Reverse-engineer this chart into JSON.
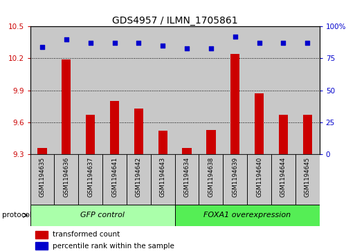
{
  "title": "GDS4957 / ILMN_1705861",
  "samples": [
    "GSM1194635",
    "GSM1194636",
    "GSM1194637",
    "GSM1194641",
    "GSM1194642",
    "GSM1194643",
    "GSM1194634",
    "GSM1194638",
    "GSM1194639",
    "GSM1194640",
    "GSM1194644",
    "GSM1194645"
  ],
  "bar_values": [
    9.36,
    10.19,
    9.67,
    9.8,
    9.73,
    9.52,
    9.36,
    9.53,
    10.24,
    9.87,
    9.67,
    9.67
  ],
  "dot_values": [
    84,
    90,
    87,
    87,
    87,
    85,
    83,
    83,
    92,
    87,
    87,
    87
  ],
  "bar_bottom": 9.3,
  "ylim_left": [
    9.3,
    10.5
  ],
  "ylim_right": [
    0,
    100
  ],
  "yticks_left": [
    9.3,
    9.6,
    9.9,
    10.2,
    10.5
  ],
  "yticks_right": [
    0,
    25,
    50,
    75,
    100
  ],
  "ytick_labels_left": [
    "9.3",
    "9.6",
    "9.9",
    "10.2",
    "10.5"
  ],
  "ytick_labels_right": [
    "0",
    "25",
    "50",
    "75",
    "100%"
  ],
  "bar_color": "#cc0000",
  "dot_color": "#0000cc",
  "group1_label": "GFP control",
  "group2_label": "FOXA1 overexpression",
  "group1_indices": [
    0,
    1,
    2,
    3,
    4,
    5
  ],
  "group2_indices": [
    6,
    7,
    8,
    9,
    10,
    11
  ],
  "group1_color": "#aaffaa",
  "group2_color": "#55ee55",
  "protocol_label": "protocol",
  "legend_bar_label": "transformed count",
  "legend_dot_label": "percentile rank within the sample",
  "grid_color": "black",
  "col_bg_color": "#c8c8c8",
  "title_fontsize": 10,
  "tick_fontsize": 7.5,
  "sample_fontsize": 6.2,
  "legend_fontsize": 7.5,
  "group_fontsize": 8
}
